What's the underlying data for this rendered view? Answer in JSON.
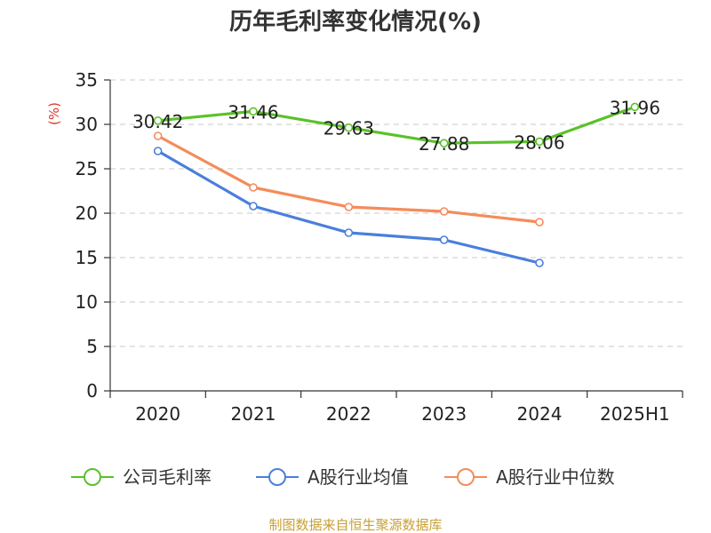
{
  "chart_data": {
    "type": "line",
    "title": "历年毛利率变化情况(%)",
    "ylabel": "(%)",
    "xlabel": "",
    "categories": [
      "2020",
      "2021",
      "2022",
      "2023",
      "2024",
      "2025H1"
    ],
    "ylim": [
      0,
      35
    ],
    "yticks": [
      0,
      5,
      10,
      15,
      20,
      25,
      30,
      35
    ],
    "grid": true,
    "legend_position": "bottom",
    "series": [
      {
        "name": "公司毛利率",
        "color": "#5ac229",
        "values": [
          30.42,
          31.46,
          29.63,
          27.88,
          28.06,
          31.96
        ],
        "labels": [
          "30.42",
          "31.46",
          "29.63",
          "27.88",
          "28.06",
          "31.96"
        ],
        "show_labels": true
      },
      {
        "name": "A股行业均值",
        "color": "#4a7fdc",
        "values": [
          27.0,
          20.8,
          17.8,
          17.0,
          14.4,
          null
        ],
        "show_labels": false
      },
      {
        "name": "A股行业中位数",
        "color": "#f48c5a",
        "values": [
          28.7,
          22.9,
          20.7,
          20.2,
          19.0,
          null
        ],
        "show_labels": false
      }
    ]
  },
  "source_text": "制图数据来自恒生聚源数据库",
  "colors": {
    "unit": "#d9392b",
    "source": "#c8a035",
    "axis": "#333333",
    "grid": "#c8c8c8"
  }
}
